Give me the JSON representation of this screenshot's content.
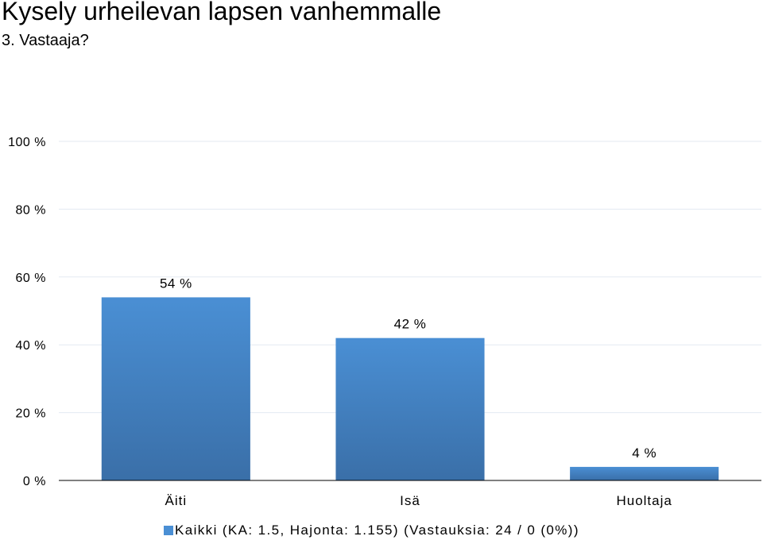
{
  "chart_data": {
    "type": "bar",
    "title": "Kysely urheilevan lapsen vanhemmalle",
    "subtitle": "3. Vastaaja?",
    "categories": [
      "Äiti",
      "Isä",
      "Huoltaja"
    ],
    "series": [
      {
        "name": "Kaikki (KA: 1.5, Hajonta: 1.155) (Vastauksia: 24 / 0 (0%))",
        "values": [
          54,
          42,
          4
        ],
        "value_labels": [
          "54 %",
          "42 %",
          "4 %"
        ]
      }
    ],
    "y_ticks": [
      0,
      20,
      40,
      60,
      80,
      100
    ],
    "y_tick_labels": [
      "0 %",
      "20 %",
      "40 %",
      "60 %",
      "80 %",
      "100 %"
    ],
    "ylim": [
      0,
      100
    ],
    "xlabel": "",
    "ylabel": "",
    "grid": true,
    "legend_position": "bottom",
    "bar_color": "#4a8fd4",
    "bar_color_dark": "#3a6fa8"
  }
}
